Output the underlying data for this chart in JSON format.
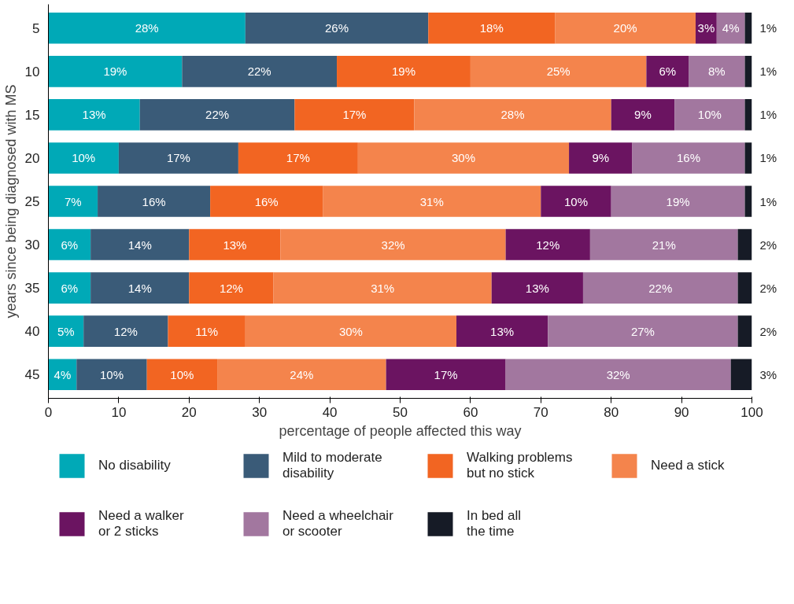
{
  "chart_data": {
    "type": "bar",
    "orientation": "horizontal",
    "stacked": true,
    "categories": [
      "5",
      "10",
      "15",
      "20",
      "25",
      "30",
      "35",
      "40",
      "45"
    ],
    "xlabel": "percentage of people affected this way",
    "ylabel": "years since being diagnosed with MS",
    "xlim": [
      0,
      100
    ],
    "xticks": [
      0,
      10,
      20,
      30,
      40,
      50,
      60,
      70,
      80,
      90,
      100
    ],
    "grid": false,
    "legend": "bottom",
    "data_labels": true,
    "series": [
      {
        "name": "No disability",
        "color": "#00a9b7",
        "values": [
          28,
          19,
          13,
          10,
          7,
          6,
          6,
          5,
          4
        ],
        "value_labels": [
          "28%",
          "19%",
          "13%",
          "10%",
          "7%",
          "6%",
          "6%",
          "5%",
          "4%"
        ]
      },
      {
        "name": "Mild to moderate disability",
        "color": "#3a5b78",
        "values": [
          26,
          22,
          22,
          17,
          16,
          14,
          14,
          12,
          10
        ],
        "value_labels": [
          "26%",
          "22%",
          "22%",
          "17%",
          "16%",
          "14%",
          "14%",
          "12%",
          "10%"
        ]
      },
      {
        "name": "Walking problems but no stick",
        "color": "#f26522",
        "values": [
          18,
          19,
          17,
          17,
          16,
          13,
          12,
          11,
          10
        ],
        "value_labels": [
          "18%",
          "19%",
          "17%",
          "17%",
          "16%",
          "13%",
          "12%",
          "11%",
          "10%"
        ]
      },
      {
        "name": "Need a stick",
        "color": "#f4844c",
        "values": [
          20,
          25,
          28,
          30,
          31,
          32,
          31,
          30,
          24
        ],
        "value_labels": [
          "20%",
          "25%",
          "28%",
          "30%",
          "31%",
          "32%",
          "31%",
          "30%",
          "24%"
        ]
      },
      {
        "name": "Need a walker or 2 sticks",
        "color": "#6b1461",
        "values": [
          3,
          6,
          9,
          9,
          10,
          12,
          13,
          13,
          17
        ],
        "value_labels": [
          "3%",
          "6%",
          "9%",
          "9%",
          "10%",
          "12%",
          "13%",
          "13%",
          "17%"
        ]
      },
      {
        "name": "Need a wheelchair or scooter",
        "color": "#a2779f",
        "values": [
          4,
          8,
          10,
          16,
          19,
          21,
          22,
          27,
          32
        ],
        "value_labels": [
          "4%",
          "8%",
          "10%",
          "16%",
          "19%",
          "21%",
          "22%",
          "27%",
          "32%"
        ]
      },
      {
        "name": "In bed all the time",
        "color": "#161b26",
        "values": [
          1,
          1,
          1,
          1,
          1,
          2,
          2,
          2,
          3
        ],
        "value_labels": [
          "1%",
          "1%",
          "1%",
          "1%",
          "1%",
          "2%",
          "2%",
          "2%",
          "3%"
        ]
      }
    ]
  }
}
